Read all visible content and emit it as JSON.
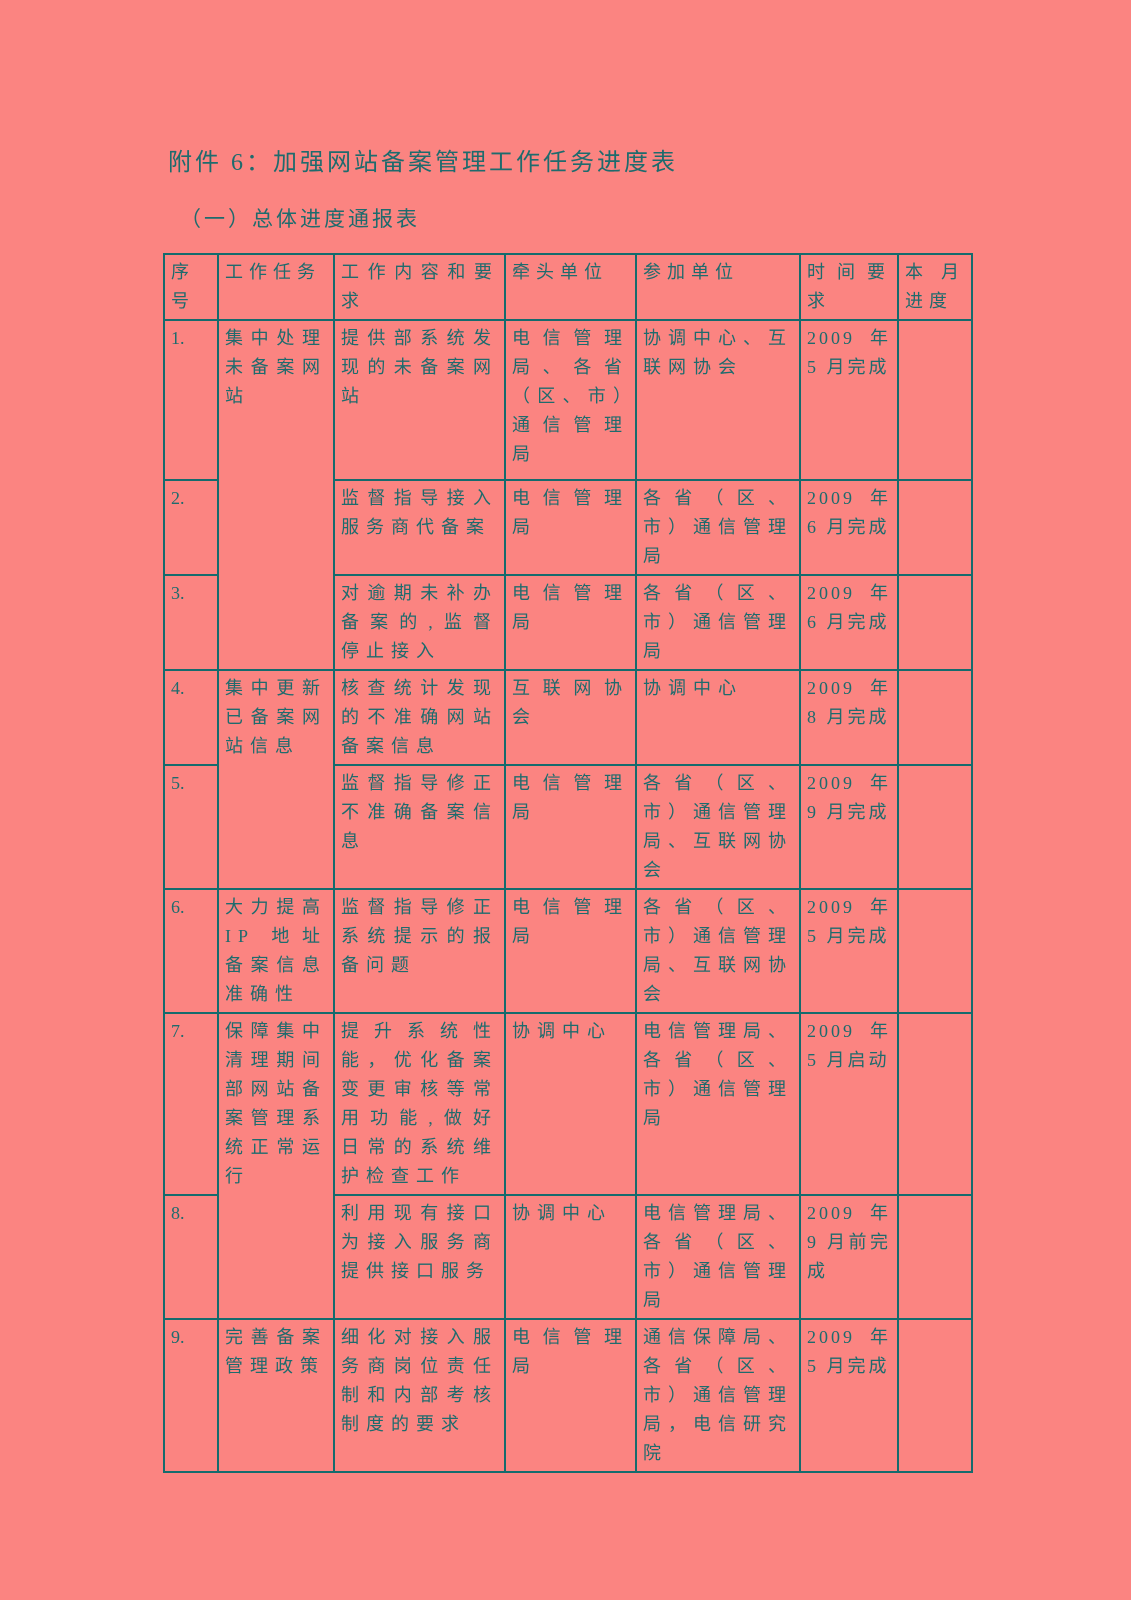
{
  "page": {
    "background_color": "#FB8481",
    "ink_color": "#1E6B6D",
    "border_color": "#156B6D"
  },
  "title": "附件 6：加强网站备案管理工作任务进度表",
  "subtitle": "（一）总体进度通报表",
  "table": {
    "headers": {
      "no": "序号",
      "task": "工作任务",
      "content": "工作内容和要求",
      "lead": "牵头单位",
      "participants": "参加单位",
      "time": "时间要求",
      "progress": "本月进度"
    },
    "rows": [
      {
        "no": "1.",
        "task": "集中处理未备案网站",
        "content": "提供部系统发现的未备案网站",
        "lead": "电信管理局、各省（区、市）通信管理局",
        "participants": "协调中心、互联网协会",
        "time": "2009 年 5 月完成",
        "progress": ""
      },
      {
        "no": "2.",
        "content": "监督指导接入服务商代备案",
        "lead": "电信管理局",
        "participants": "各省（区、市）通信管理局",
        "time": "2009 年 6 月完成",
        "progress": ""
      },
      {
        "no": "3.",
        "content": "对逾期未补办备案的,监督停止接入",
        "lead": "电信管理局",
        "participants": "各省（区、市）通信管理局",
        "time": "2009 年 6 月完成",
        "progress": ""
      },
      {
        "no": "4.",
        "task": "集中更新已备案网站信息",
        "content": "核查统计发现的不准确网站备案信息",
        "lead": "互联网协会",
        "participants": "协调中心",
        "time": "2009 年 8 月完成",
        "progress": ""
      },
      {
        "no": "5.",
        "content": "监督指导修正不准确备案信息",
        "lead": "电信管理局",
        "participants": "各省（区、市）通信管理局、互联网协会",
        "time": "2009 年 9 月完成",
        "progress": ""
      },
      {
        "no": "6.",
        "task": "大力提高 IP 地址备案信息准确性",
        "content": "监督指导修正系统提示的报备问题",
        "lead": "电信管理局",
        "participants": "各省（区、市）通信管理局、互联网协会",
        "time": "2009 年 5 月完成",
        "progress": ""
      },
      {
        "no": "7.",
        "task": "保障集中清理期间部网站备案管理系统正常运行",
        "content": "提升系统性能，优化备案变更审核等常用功能,做好日常的系统维护检查工作",
        "lead": "协调中心",
        "participants": "电信管理局、各省（区、市）通信管理局",
        "time": "2009 年 5 月启动",
        "progress": ""
      },
      {
        "no": "8.",
        "content": "利用现有接口为接入服务商提供接口服务",
        "lead": "协调中心",
        "participants": "电信管理局、各省（区、市）通信管理局",
        "time": "2009 年 9 月前完成",
        "progress": ""
      },
      {
        "no": "9.",
        "task": "完善备案管理政策",
        "content": "细化对接入服务商岗位责任制和内部考核制度的要求",
        "lead": "电信管理局",
        "participants": "通信保障局、各省（区、市）通信管理局，电信研究院",
        "time": "2009 年 5 月完成",
        "progress": ""
      }
    ]
  }
}
